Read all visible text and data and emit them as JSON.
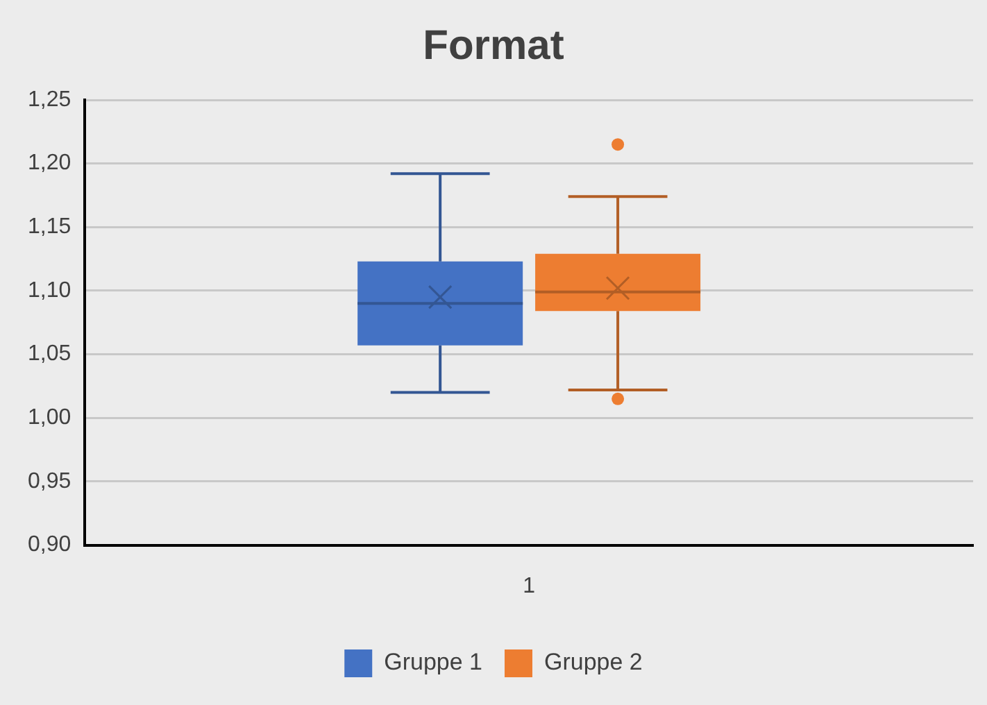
{
  "chart_data": {
    "type": "box",
    "title": "Format",
    "categories": [
      "1"
    ],
    "series": [
      {
        "name": "Gruppe 1",
        "color": "#4472c4",
        "boxes": [
          {
            "low": 1.02,
            "q1": 1.057,
            "median": 1.09,
            "q3": 1.123,
            "high": 1.192,
            "mean": 1.095
          }
        ]
      },
      {
        "name": "Gruppe 2",
        "color": "#ed7d31",
        "boxes": [
          {
            "low": 1.022,
            "q1": 1.084,
            "median": 1.099,
            "q3": 1.129,
            "high": 1.174,
            "mean": 1.102,
            "outliers": [
              1.215,
              1.015
            ]
          }
        ]
      }
    ],
    "ylim": [
      0.9,
      1.25
    ],
    "yticks": [
      {
        "value": 0.9,
        "label": "0,90"
      },
      {
        "value": 0.95,
        "label": "0,95"
      },
      {
        "value": 1.0,
        "label": "1,00"
      },
      {
        "value": 1.05,
        "label": "1,05"
      },
      {
        "value": 1.1,
        "label": "1,10"
      },
      {
        "value": 1.15,
        "label": "1,15"
      },
      {
        "value": 1.2,
        "label": "1,20"
      },
      {
        "value": 1.25,
        "label": "1,25"
      }
    ],
    "grid": "y",
    "legend": "bottom",
    "marker": "cross"
  }
}
